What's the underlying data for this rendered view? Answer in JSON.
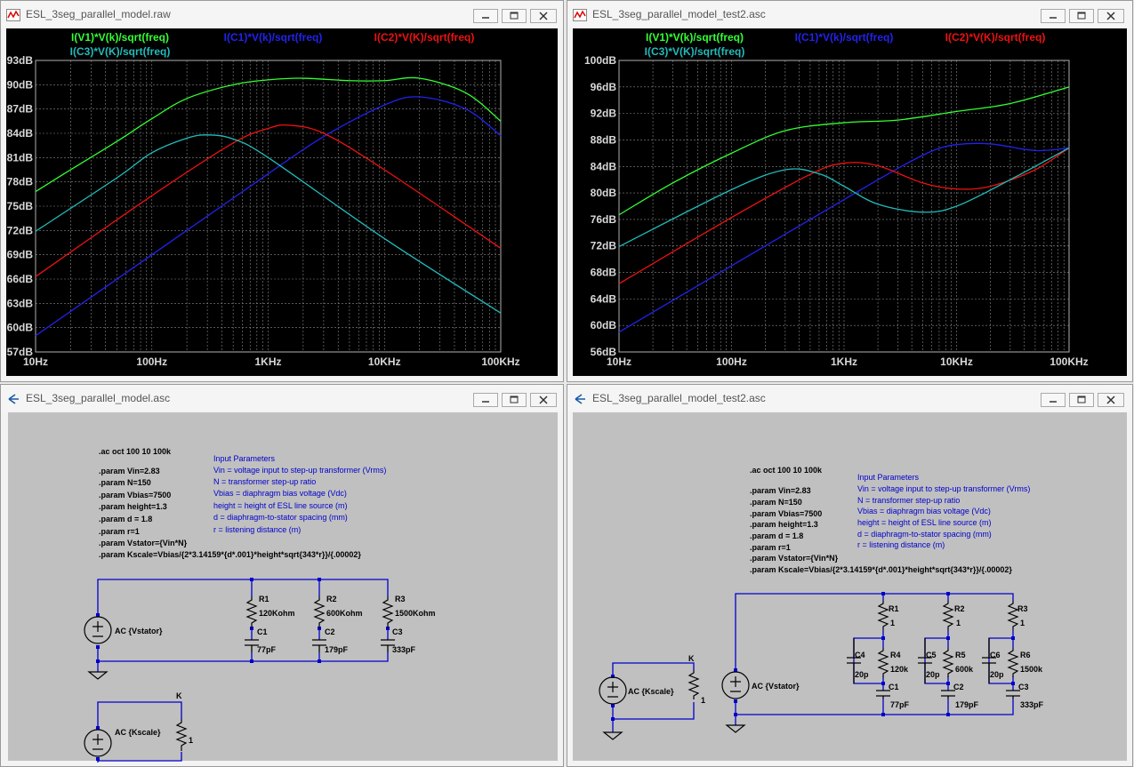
{
  "windows": {
    "top_left": {
      "title": "ESL_3seg_parallel_model.raw"
    },
    "top_right": {
      "title": "ESL_3seg_parallel_model_test2.asc"
    },
    "bottom_left": {
      "title": "ESL_3seg_parallel_model.asc"
    },
    "bottom_right": {
      "title": "ESL_3seg_parallel_model_test2.asc"
    }
  },
  "legend": {
    "v1": "I(V1)*V(k)/sqrt(freq)",
    "c1": "I(C1)*V(k)/sqrt(freq)",
    "c2": "I(C2)*V(K)/sqrt(freq)",
    "c3": "I(C3)*V(K)/sqrt(freq)"
  },
  "colors": {
    "v1": "#33ff33",
    "c1": "#2222ee",
    "c2": "#ee1111",
    "c3": "#22bbbb",
    "schematic_text": "#0000cc",
    "wire": "#0000cc"
  },
  "chart_data": [
    {
      "type": "line",
      "x_scale": "log",
      "x_ticks": [
        "10Hz",
        "100Hz",
        "1KHz",
        "10KHz",
        "100KHz"
      ],
      "y_ticks": [
        "93dB",
        "90dB",
        "87dB",
        "84dB",
        "81dB",
        "78dB",
        "75dB",
        "72dB",
        "69dB",
        "66dB",
        "63dB",
        "60dB",
        "57dB"
      ],
      "xlim": [
        10,
        100000
      ],
      "ylim": [
        57,
        93
      ],
      "grid": true,
      "series": [
        {
          "name": "I(V1)*V(k)/sqrt(freq)",
          "key": "v1",
          "x": [
            10,
            20,
            50,
            100,
            200,
            500,
            1000,
            2000,
            5000,
            10000,
            20000,
            50000,
            100000
          ],
          "y": [
            76.8,
            79.5,
            83.0,
            85.8,
            88.3,
            90.0,
            90.6,
            90.8,
            90.5,
            90.5,
            90.8,
            89.0,
            85.5
          ]
        },
        {
          "name": "I(C1)*V(k)/sqrt(freq)",
          "key": "c1",
          "x": [
            10,
            100,
            1000,
            3000,
            10000,
            20000,
            50000,
            100000
          ],
          "y": [
            59.0,
            69.0,
            79.0,
            83.6,
            87.5,
            88.5,
            87.0,
            83.7
          ]
        },
        {
          "name": "I(C2)*V(K)/sqrt(freq)",
          "key": "c2",
          "x": [
            10,
            100,
            500,
            1000,
            1500,
            3000,
            10000,
            100000
          ],
          "y": [
            66.3,
            76.3,
            82.8,
            84.6,
            85.0,
            84.0,
            79.5,
            69.8
          ]
        },
        {
          "name": "I(C3)*V(K)/sqrt(freq)",
          "key": "c3",
          "x": [
            10,
            50,
            100,
            200,
            300,
            500,
            1000,
            10000,
            100000
          ],
          "y": [
            71.9,
            78.5,
            81.6,
            83.4,
            83.8,
            83.3,
            81.0,
            71.0,
            61.8
          ]
        }
      ]
    },
    {
      "type": "line",
      "x_scale": "log",
      "x_ticks": [
        "10Hz",
        "100Hz",
        "1KHz",
        "10KHz",
        "100KHz"
      ],
      "y_ticks": [
        "100dB",
        "96dB",
        "92dB",
        "88dB",
        "84dB",
        "80dB",
        "76dB",
        "72dB",
        "68dB",
        "64dB",
        "60dB",
        "56dB"
      ],
      "xlim": [
        10,
        100000
      ],
      "ylim": [
        56,
        100
      ],
      "grid": true,
      "series": [
        {
          "name": "I(V1)*V(k)/sqrt(freq)",
          "key": "v1",
          "x": [
            10,
            30,
            100,
            300,
            1000,
            3000,
            10000,
            30000,
            100000
          ],
          "y": [
            76.7,
            81.5,
            86.0,
            89.4,
            90.6,
            91.0,
            92.3,
            93.5,
            96.0
          ]
        },
        {
          "name": "I(C1)*V(k)/sqrt(freq)",
          "key": "c1",
          "x": [
            10,
            100,
            1000,
            3000,
            6000,
            10000,
            20000,
            50000,
            100000
          ],
          "y": [
            59.0,
            69.0,
            79.0,
            83.7,
            86.3,
            87.3,
            87.4,
            86.4,
            86.8
          ]
        },
        {
          "name": "I(C2)*V(K)/sqrt(freq)",
          "key": "c2",
          "x": [
            10,
            100,
            500,
            1000,
            2000,
            5000,
            10000,
            20000,
            50000,
            100000
          ],
          "y": [
            66.3,
            76.3,
            82.8,
            84.5,
            84.1,
            81.5,
            80.6,
            81.0,
            83.5,
            86.8
          ]
        },
        {
          "name": "I(C3)*V(K)/sqrt(freq)",
          "key": "c3",
          "x": [
            10,
            100,
            300,
            600,
            1000,
            2000,
            5000,
            10000,
            30000,
            100000
          ],
          "y": [
            71.9,
            80.5,
            83.5,
            82.9,
            81.0,
            78.3,
            77.1,
            78.0,
            82.0,
            86.8
          ]
        }
      ]
    }
  ],
  "schematic_left": {
    "directive": ".ac oct 100 10 100k",
    "params": [
      ".param Vin=2.83",
      ".param N=150",
      ".param Vbias=7500",
      ".param height=1.3",
      ".param d = 1.8",
      ".param r=1",
      ".param Vstator={Vin*N}",
      ".param Kscale=Vbias/{2*3.14159*{d*.001}*height*sqrt{343*r}}/{.00002}"
    ],
    "notes": [
      "Input Parameters",
      "Vin = voltage input to step-up transformer (Vrms)",
      "N = transformer step-up ratio",
      "Vbias = diaphragm bias voltage (Vdc)",
      "height = height of ESL line source (m)",
      "d = diaphragm-to-stator spacing (mm)",
      "r = listening distance (m)"
    ],
    "source1": "AC {Vstator}",
    "source2": "AC {Kscale}",
    "r1": "R1",
    "r1v": "120Kohm",
    "r2": "R2",
    "r2v": "600Kohm",
    "r3": "R3",
    "r3v": "1500Kohm",
    "c1": "C1",
    "c1v": "77pF",
    "c2": "C2",
    "c2v": "179pF",
    "c3": "C3",
    "c3v": "333pF",
    "k": "K",
    "one": "1"
  },
  "schematic_right": {
    "directive": ".ac oct 100 10 100k",
    "params": [
      ".param Vin=2.83",
      ".param N=150",
      ".param Vbias=7500",
      ".param height=1.3",
      ".param d = 1.8",
      ".param r=1",
      ".param Vstator={Vin*N}",
      ".param Kscale=Vbias/{2*3.14159*{d*.001}*height*sqrt{343*r}}/{.00002}"
    ],
    "notes": [
      "Input Parameters",
      "Vin = voltage input to step-up transformer (Vrms)",
      "N = transformer step-up ratio",
      "Vbias = diaphragm bias voltage (Vdc)",
      "height = height of ESL line source (m)",
      "d = diaphragm-to-stator spacing (mm)",
      "r = listening distance (m)"
    ],
    "source1": "AC {Kscale}",
    "source2": "AC {Vstator}",
    "k": "K",
    "one": "1",
    "r1": "R1",
    "r2": "R2",
    "r3": "R3",
    "r4": "R4",
    "r4v": "120k",
    "r5": "R5",
    "r5v": "600k",
    "r6": "R6",
    "r6v": "1500k",
    "c4": "C4",
    "c5": "C5",
    "c6": "C6",
    "cpv": "20p",
    "c1": "C1",
    "c1v": "77pF",
    "c2": "C2",
    "c2v": "179pF",
    "c3": "C3",
    "c3v": "333pF"
  }
}
